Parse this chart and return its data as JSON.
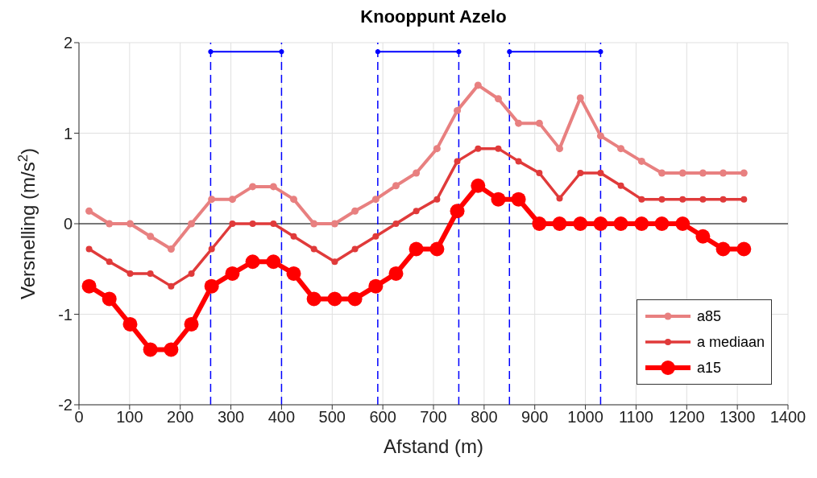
{
  "chart_data": {
    "type": "line",
    "title": "Knooppunt Azelo",
    "xlabel": "Afstand (m)",
    "ylabel": "Versnelling (m/s$^{2}$)",
    "x": [
      20,
      60,
      101,
      141,
      182,
      222,
      262,
      303,
      343,
      384,
      424,
      464,
      505,
      545,
      586,
      626,
      666,
      707,
      747,
      788,
      828,
      868,
      909,
      949,
      990,
      1030,
      1070,
      1111,
      1151,
      1192,
      1232,
      1272,
      1313
    ],
    "series": [
      {
        "name": "a85",
        "color": "#e88080",
        "values": [
          0.14,
          0,
          0,
          -0.14,
          -0.28,
          0,
          0.27,
          0.27,
          0.41,
          0.41,
          0.27,
          0,
          0,
          0.14,
          0.27,
          0.42,
          0.56,
          0.83,
          1.25,
          1.53,
          1.38,
          1.11,
          1.11,
          0.83,
          1.39,
          0.97,
          0.83,
          0.69,
          0.56,
          0.56,
          0.56,
          0.56,
          0.56
        ]
      },
      {
        "name": "a mediaan",
        "color": "#e03a3a",
        "values": [
          -0.28,
          -0.42,
          -0.55,
          -0.55,
          -0.69,
          -0.55,
          -0.28,
          0,
          0,
          0,
          -0.14,
          -0.28,
          -0.42,
          -0.28,
          -0.14,
          0,
          0.14,
          0.27,
          0.69,
          0.83,
          0.83,
          0.69,
          0.56,
          0.28,
          0.56,
          0.56,
          0.42,
          0.27,
          0.27,
          0.27,
          0.27,
          0.27,
          0.27
        ]
      },
      {
        "name": "a15",
        "color": "#ff0000",
        "values": [
          -0.69,
          -0.83,
          -1.11,
          -1.39,
          -1.39,
          -1.11,
          -0.69,
          -0.55,
          -0.42,
          -0.42,
          -0.55,
          -0.83,
          -0.83,
          -0.83,
          -0.69,
          -0.55,
          -0.28,
          -0.28,
          0.14,
          0.42,
          0.27,
          0.27,
          0,
          0,
          0,
          0,
          0,
          0,
          0,
          0,
          -0.14,
          -0.28,
          -0.28
        ]
      },
      {
        "color": "#0000ff",
        "x": [
          260,
          400
        ],
        "values": [
          1.9,
          1.9
        ]
      },
      {
        "color": "#0000ff",
        "x": [
          590,
          750
        ],
        "values": [
          1.9,
          1.9
        ]
      },
      {
        "color": "#0000ff",
        "x": [
          850,
          1030
        ],
        "values": [
          1.9,
          1.9
        ]
      }
    ],
    "ref_lines": [
      {
        "axis": "y",
        "value": 0,
        "color": "#000000",
        "line_style": "solid"
      },
      {
        "axis": "x",
        "value": 260,
        "color": "#0000ff",
        "line_style": "dashed"
      },
      {
        "axis": "x",
        "value": 400,
        "color": "#0000ff",
        "line_style": "dashed"
      },
      {
        "axis": "x",
        "value": 590,
        "color": "#0000ff",
        "line_style": "dashed"
      },
      {
        "axis": "x",
        "value": 750,
        "color": "#0000ff",
        "line_style": "dashed"
      },
      {
        "axis": "x",
        "value": 850,
        "color": "#0000ff",
        "line_style": "dashed"
      },
      {
        "axis": "x",
        "value": 1030,
        "color": "#0000ff",
        "line_style": "dashed"
      }
    ],
    "xlim": [
      0,
      1400
    ],
    "xticks": [
      0,
      100,
      200,
      300,
      400,
      500,
      600,
      700,
      800,
      900,
      1000,
      1100,
      1200,
      1300,
      1400
    ],
    "ylim": [
      -2,
      2
    ],
    "yticks": [
      -2,
      -1,
      0,
      1,
      2
    ],
    "grid": true,
    "legend": "bottom right",
    "marker": "circle",
    "line_style": "solid"
  }
}
